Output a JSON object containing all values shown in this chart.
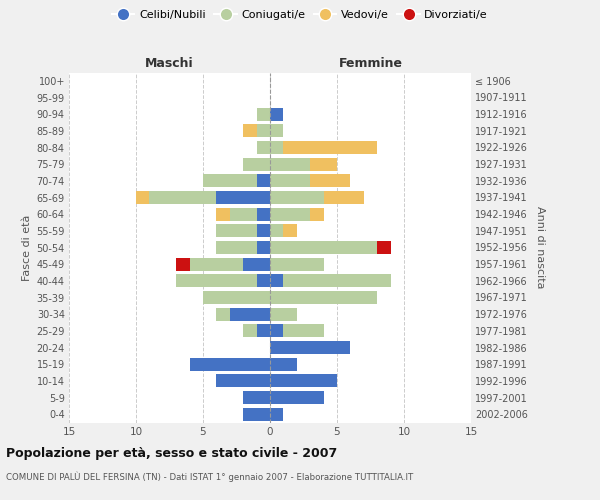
{
  "age_groups": [
    "0-4",
    "5-9",
    "10-14",
    "15-19",
    "20-24",
    "25-29",
    "30-34",
    "35-39",
    "40-44",
    "45-49",
    "50-54",
    "55-59",
    "60-64",
    "65-69",
    "70-74",
    "75-79",
    "80-84",
    "85-89",
    "90-94",
    "95-99",
    "100+"
  ],
  "birth_years": [
    "2002-2006",
    "1997-2001",
    "1992-1996",
    "1987-1991",
    "1982-1986",
    "1977-1981",
    "1972-1976",
    "1967-1971",
    "1962-1966",
    "1957-1961",
    "1952-1956",
    "1947-1951",
    "1942-1946",
    "1937-1941",
    "1932-1936",
    "1927-1931",
    "1922-1926",
    "1917-1921",
    "1912-1916",
    "1907-1911",
    "≤ 1906"
  ],
  "maschi": {
    "celibi": [
      2,
      2,
      4,
      6,
      0,
      1,
      3,
      0,
      1,
      2,
      1,
      1,
      1,
      4,
      1,
      0,
      0,
      0,
      0,
      0,
      0
    ],
    "coniugati": [
      0,
      0,
      0,
      0,
      0,
      1,
      1,
      5,
      6,
      4,
      3,
      3,
      2,
      5,
      4,
      2,
      1,
      1,
      1,
      0,
      0
    ],
    "vedovi": [
      0,
      0,
      0,
      0,
      0,
      0,
      0,
      0,
      0,
      0,
      0,
      0,
      1,
      1,
      0,
      0,
      0,
      1,
      0,
      0,
      0
    ],
    "divorziati": [
      0,
      0,
      0,
      0,
      0,
      0,
      0,
      0,
      0,
      1,
      0,
      0,
      0,
      0,
      0,
      0,
      0,
      0,
      0,
      0,
      0
    ]
  },
  "femmine": {
    "nubili": [
      1,
      4,
      5,
      2,
      6,
      1,
      0,
      0,
      1,
      0,
      0,
      0,
      0,
      0,
      0,
      0,
      0,
      0,
      1,
      0,
      0
    ],
    "coniugate": [
      0,
      0,
      0,
      0,
      0,
      3,
      2,
      8,
      8,
      4,
      8,
      1,
      3,
      4,
      3,
      3,
      1,
      1,
      0,
      0,
      0
    ],
    "vedove": [
      0,
      0,
      0,
      0,
      0,
      0,
      0,
      0,
      0,
      0,
      0,
      1,
      1,
      3,
      3,
      2,
      7,
      0,
      0,
      0,
      0
    ],
    "divorziate": [
      0,
      0,
      0,
      0,
      0,
      0,
      0,
      0,
      0,
      0,
      1,
      0,
      0,
      0,
      0,
      0,
      0,
      0,
      0,
      0,
      0
    ]
  },
  "colors": {
    "celibi_nubili": "#4472c4",
    "coniugati": "#b8cfa0",
    "vedovi": "#f0c060",
    "divorziati": "#cc1111"
  },
  "xlim": 15,
  "title": "Popolazione per età, sesso e stato civile - 2007",
  "subtitle": "COMUNE DI PALÙ DEL FERSINA (TN) - Dati ISTAT 1° gennaio 2007 - Elaborazione TUTTITALIA.IT",
  "ylabel_left": "Fasce di età",
  "ylabel_right": "Anni di nascita",
  "xlabel_maschi": "Maschi",
  "xlabel_femmine": "Femmine",
  "bg_color": "#f0f0f0",
  "plot_bg": "#ffffff",
  "grid_color": "#cccccc"
}
